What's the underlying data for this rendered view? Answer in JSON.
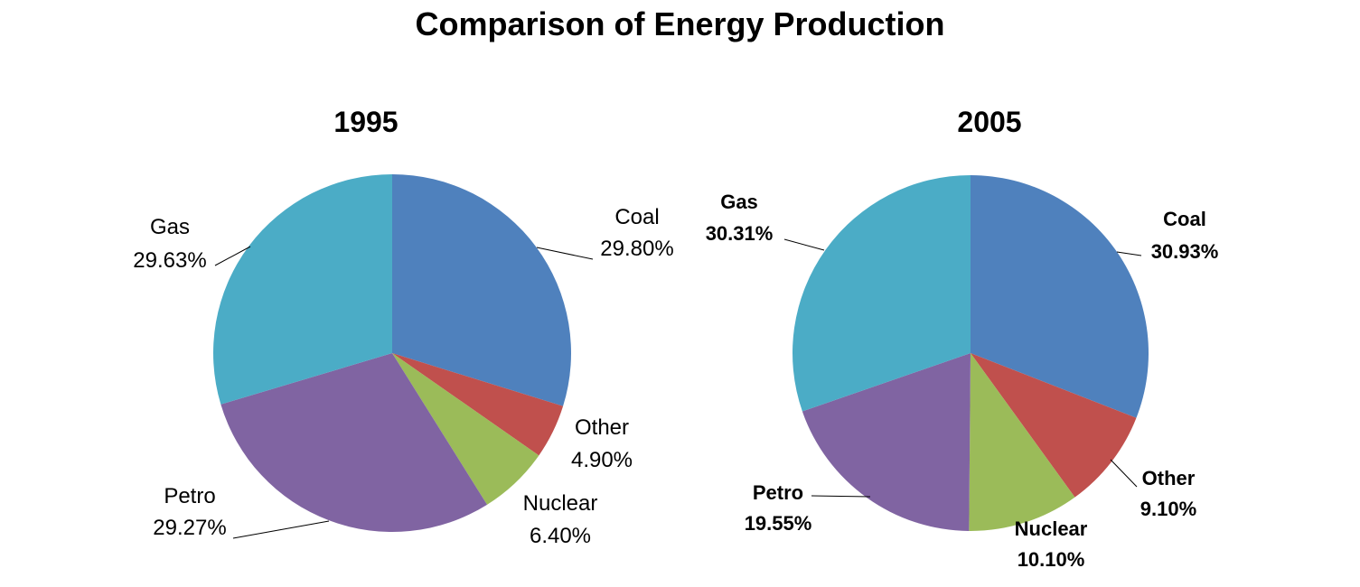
{
  "title": "Comparison of Energy Production",
  "colors": {
    "Coal": "#4F81BD",
    "Other": "#C0504D",
    "Nuclear": "#9BBB59",
    "Petro": "#8064A2",
    "Gas": "#4BACC6"
  },
  "chart_data": [
    {
      "type": "pie",
      "title": "1995",
      "start_angle_deg": 0,
      "direction": "clockwise",
      "slices": [
        {
          "label": "Coal",
          "value": 29.8,
          "display": "29.80%"
        },
        {
          "label": "Other",
          "value": 4.9,
          "display": "4.90%"
        },
        {
          "label": "Nuclear",
          "value": 6.4,
          "display": "6.40%"
        },
        {
          "label": "Petro",
          "value": 29.27,
          "display": "29.27%"
        },
        {
          "label": "Gas",
          "value": 29.63,
          "display": "29.63%"
        }
      ]
    },
    {
      "type": "pie",
      "title": "2005",
      "start_angle_deg": 0,
      "direction": "clockwise",
      "slices": [
        {
          "label": "Coal",
          "value": 30.93,
          "display": "30.93%"
        },
        {
          "label": "Other",
          "value": 9.1,
          "display": "9.10%"
        },
        {
          "label": "Nuclear",
          "value": 10.1,
          "display": "10.10%"
        },
        {
          "label": "Petro",
          "value": 19.55,
          "display": "19.55%"
        },
        {
          "label": "Gas",
          "value": 30.31,
          "display": "30.31%"
        }
      ]
    }
  ]
}
